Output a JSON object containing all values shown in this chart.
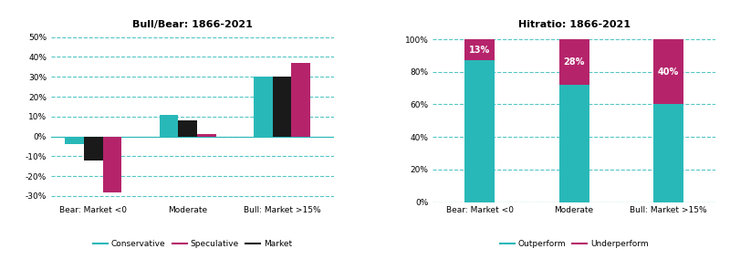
{
  "left_title": "Bull/Bear: 1866-2021",
  "right_title": "Hitratio: 1866-2021",
  "categories": [
    "Bear: Market <0",
    "Moderate",
    "Bull: Market >15%"
  ],
  "conservative": [
    -4,
    11,
    30
  ],
  "speculative": [
    -28,
    1,
    37
  ],
  "market": [
    -12,
    8,
    30
  ],
  "outperform": [
    87,
    72,
    60
  ],
  "underperform": [
    13,
    28,
    40
  ],
  "color_conservative": "#29B8B8",
  "color_speculative": "#B5246B",
  "color_market": "#1A1A1A",
  "color_outperform": "#29B8B8",
  "color_underperform": "#B5246B",
  "left_ylim": [
    -33,
    53
  ],
  "left_yticks": [
    -30,
    -20,
    -10,
    0,
    10,
    20,
    30,
    40,
    50
  ],
  "right_ylim": [
    0,
    105
  ],
  "right_yticks": [
    0,
    20,
    40,
    60,
    80,
    100
  ],
  "bar_width": 0.2,
  "right_bar_width": 0.32,
  "grid_color": "#29B8B8",
  "background_color": "#FFFFFF"
}
